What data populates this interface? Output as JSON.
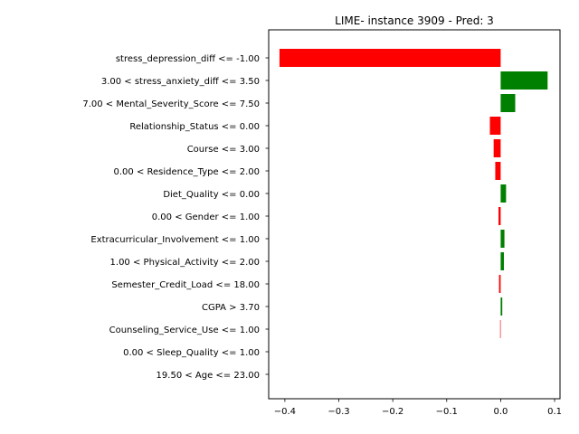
{
  "chart_data": {
    "type": "bar",
    "orientation": "horizontal",
    "title": "LIME- instance 3909 - Pred: 3",
    "xlabel": "",
    "ylabel": "",
    "xlim": [
      -0.43,
      0.11
    ],
    "xticks": [
      -0.4,
      -0.3,
      -0.2,
      -0.1,
      0.0,
      0.1
    ],
    "xtick_labels": [
      "−0.4",
      "−0.3",
      "−0.2",
      "−0.1",
      "0.0",
      "0.1"
    ],
    "grid": false,
    "legend": "none",
    "colors": {
      "positive": "#008000",
      "negative": "#ff0000"
    },
    "categories": [
      "stress_depression_diff <= -1.00",
      "3.00 < stress_anxiety_diff <= 3.50",
      "7.00 < Mental_Severity_Score <= 7.50",
      "Relationship_Status <= 0.00",
      "Course <= 3.00",
      "0.00 < Residence_Type <= 2.00",
      "Diet_Quality <= 0.00",
      "0.00 < Gender <= 1.00",
      "Extracurricular_Involvement <= 1.00",
      "1.00 < Physical_Activity <= 2.00",
      "Semester_Credit_Load <= 18.00",
      "CGPA > 3.70",
      "Counseling_Service_Use <= 1.00",
      "0.00 < Sleep_Quality <= 1.00",
      "19.50 < Age <= 23.00"
    ],
    "values": [
      -0.41,
      0.087,
      0.027,
      -0.02,
      -0.013,
      -0.01,
      0.01,
      -0.004,
      0.007,
      0.006,
      -0.003,
      0.003,
      -0.001,
      0.0,
      0.0
    ]
  }
}
